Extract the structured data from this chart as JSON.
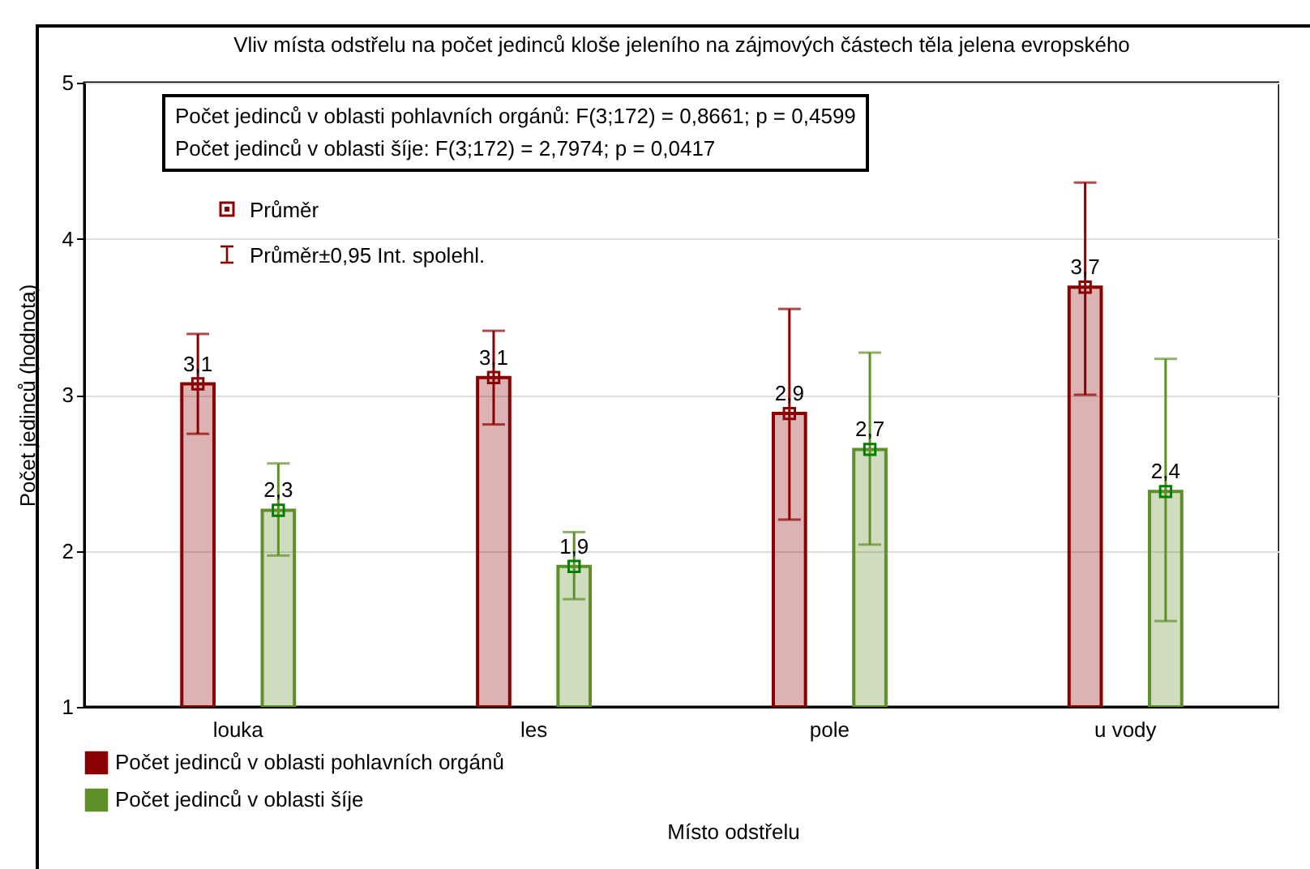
{
  "chart_data": {
    "type": "bar",
    "title": "Vliv místa odstřelu na počet jedinců kloše jeleního na zájmových částech těla jelena evropského",
    "xlabel": "Místo odstřelu",
    "ylabel": "Počet jedinců (hodnota)",
    "categories": [
      "louka",
      "les",
      "pole",
      "u vody"
    ],
    "series": [
      {
        "name": "Počet jedinců v oblasti pohlavních orgánů",
        "color": "#8b0000",
        "values": [
          3.07,
          3.11,
          2.88,
          3.69
        ],
        "errors": [
          [
            2.75,
            3.39
          ],
          [
            2.81,
            3.41
          ],
          [
            2.2,
            3.55
          ],
          [
            3.0,
            4.36
          ]
        ],
        "value_labels": [
          "3,1",
          "3,1",
          "2,9",
          "3,7"
        ]
      },
      {
        "name": "Počet jedinců v oblasti šíje",
        "color": "#5f8f28",
        "values": [
          2.26,
          1.9,
          2.65,
          2.38
        ],
        "errors": [
          [
            1.97,
            2.56
          ],
          [
            1.69,
            2.12
          ],
          [
            2.04,
            3.27
          ],
          [
            1.55,
            3.23
          ]
        ],
        "value_labels": [
          "2,3",
          "1,9",
          "2,7",
          "2,4"
        ]
      },
      {
        "type": "scatter",
        "color": "#8b0000",
        "x": [
          "louka",
          "les",
          "pole",
          "u vody"
        ],
        "values": [
          3.07,
          3.11,
          2.88,
          3.69
        ]
      },
      {
        "type": "scatter",
        "color": "#008000",
        "x": [
          "louka",
          "les",
          "pole",
          "u vody"
        ],
        "values": [
          2.26,
          1.9,
          2.65,
          2.38
        ]
      }
    ],
    "ylim": [
      1,
      5
    ],
    "yticks": [
      {
        "value": 1,
        "label": "1"
      },
      {
        "value": 2,
        "label": "2"
      },
      {
        "value": 3,
        "label": "3"
      },
      {
        "value": 4,
        "label": "4"
      },
      {
        "value": 5,
        "label": "5"
      }
    ],
    "grid": "y",
    "legend": "bottom left",
    "marker": "square",
    "annotations": [
      "Počet jedinců v oblasti pohlavních orgánů: F(3;172) = 0,8661; p = 0,4599",
      "Počet jedinců v oblasti šíje: F(3;172) = 2,7974; p = 0,0417",
      "Průměr",
      "Průměr±0,95 Int. spolehl."
    ]
  }
}
